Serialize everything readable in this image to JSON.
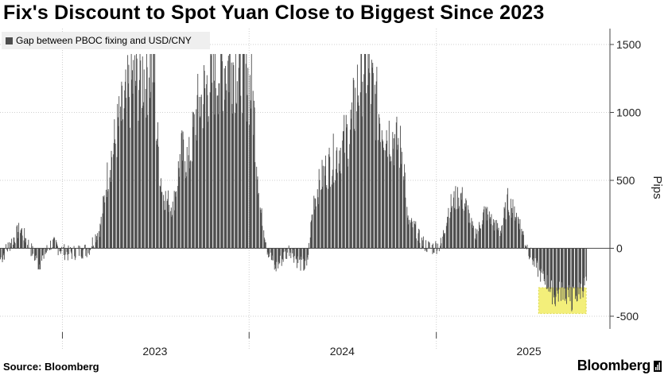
{
  "title": "Fix's Discount to Spot Yuan Close to Biggest Since 2023",
  "source": "Source: Bloomberg",
  "brand": "Bloomberg",
  "colors": {
    "bar": "#4d4d4d",
    "grid": "#cfcfcf",
    "highlight": "#f3ef7a",
    "highlightEdge": "#ddd84a"
  },
  "chart_data": {
    "type": "bar",
    "legend": "Gap between PBOC fixing and USD/CNY",
    "ylabel": "Pips",
    "ylim": [
      -600,
      1600
    ],
    "yticks": [
      1500,
      1000,
      500,
      0,
      -500
    ],
    "xlim": [
      "2022-09-01",
      "2025-11-10"
    ],
    "xticks": [
      "2023",
      "2024",
      "2025"
    ],
    "grid": true,
    "legend_position": "top-left",
    "highlight_range": {
      "x": [
        "2025-07-20",
        "2025-10-21"
      ],
      "y": [
        -480,
        -290
      ]
    },
    "series_keypoints": [
      [
        "2022-09-01",
        -80
      ],
      [
        "2022-10-10",
        150
      ],
      [
        "2022-11-15",
        -120
      ],
      [
        "2022-12-10",
        40
      ],
      [
        "2023-01-10",
        -40
      ],
      [
        "2023-02-20",
        -10
      ],
      [
        "2023-03-15",
        150
      ],
      [
        "2023-04-01",
        600
      ],
      [
        "2023-04-20",
        900
      ],
      [
        "2023-05-15",
        1200
      ],
      [
        "2023-06-10",
        1300
      ],
      [
        "2023-06-28",
        1380
      ],
      [
        "2023-07-05",
        800
      ],
      [
        "2023-07-15",
        400
      ],
      [
        "2023-08-05",
        300
      ],
      [
        "2023-08-20",
        700
      ],
      [
        "2023-09-05",
        650
      ],
      [
        "2023-09-20",
        1000
      ],
      [
        "2023-10-10",
        1200
      ],
      [
        "2023-11-05",
        1340
      ],
      [
        "2023-12-01",
        1380
      ],
      [
        "2023-12-20",
        1380
      ],
      [
        "2024-01-08",
        1100
      ],
      [
        "2024-01-22",
        300
      ],
      [
        "2024-02-05",
        0
      ],
      [
        "2024-02-20",
        -150
      ],
      [
        "2024-03-20",
        0
      ],
      [
        "2024-04-05",
        -100
      ],
      [
        "2024-04-22",
        -150
      ],
      [
        "2024-05-05",
        350
      ],
      [
        "2024-05-25",
        550
      ],
      [
        "2024-06-20",
        700
      ],
      [
        "2024-07-15",
        850
      ],
      [
        "2024-08-01",
        1200
      ],
      [
        "2024-08-12",
        1430
      ],
      [
        "2024-09-01",
        1100
      ],
      [
        "2024-09-20",
        900
      ],
      [
        "2024-10-10",
        800
      ],
      [
        "2024-10-28",
        700
      ],
      [
        "2024-11-05",
        200
      ],
      [
        "2024-11-20",
        150
      ],
      [
        "2024-12-01",
        50
      ],
      [
        "2024-12-20",
        0
      ],
      [
        "2025-01-10",
        30
      ],
      [
        "2025-01-25",
        300
      ],
      [
        "2025-02-15",
        400
      ],
      [
        "2025-03-01",
        300
      ],
      [
        "2025-03-15",
        100
      ],
      [
        "2025-03-25",
        150
      ],
      [
        "2025-04-05",
        280
      ],
      [
        "2025-04-20",
        200
      ],
      [
        "2025-05-05",
        120
      ],
      [
        "2025-05-20",
        350
      ],
      [
        "2025-06-10",
        220
      ],
      [
        "2025-06-25",
        30
      ],
      [
        "2025-07-05",
        -60
      ],
      [
        "2025-07-20",
        -180
      ],
      [
        "2025-08-05",
        -250
      ],
      [
        "2025-08-20",
        -360
      ],
      [
        "2025-09-05",
        -300
      ],
      [
        "2025-09-20",
        -380
      ],
      [
        "2025-10-05",
        -330
      ],
      [
        "2025-10-21",
        -250
      ]
    ]
  }
}
